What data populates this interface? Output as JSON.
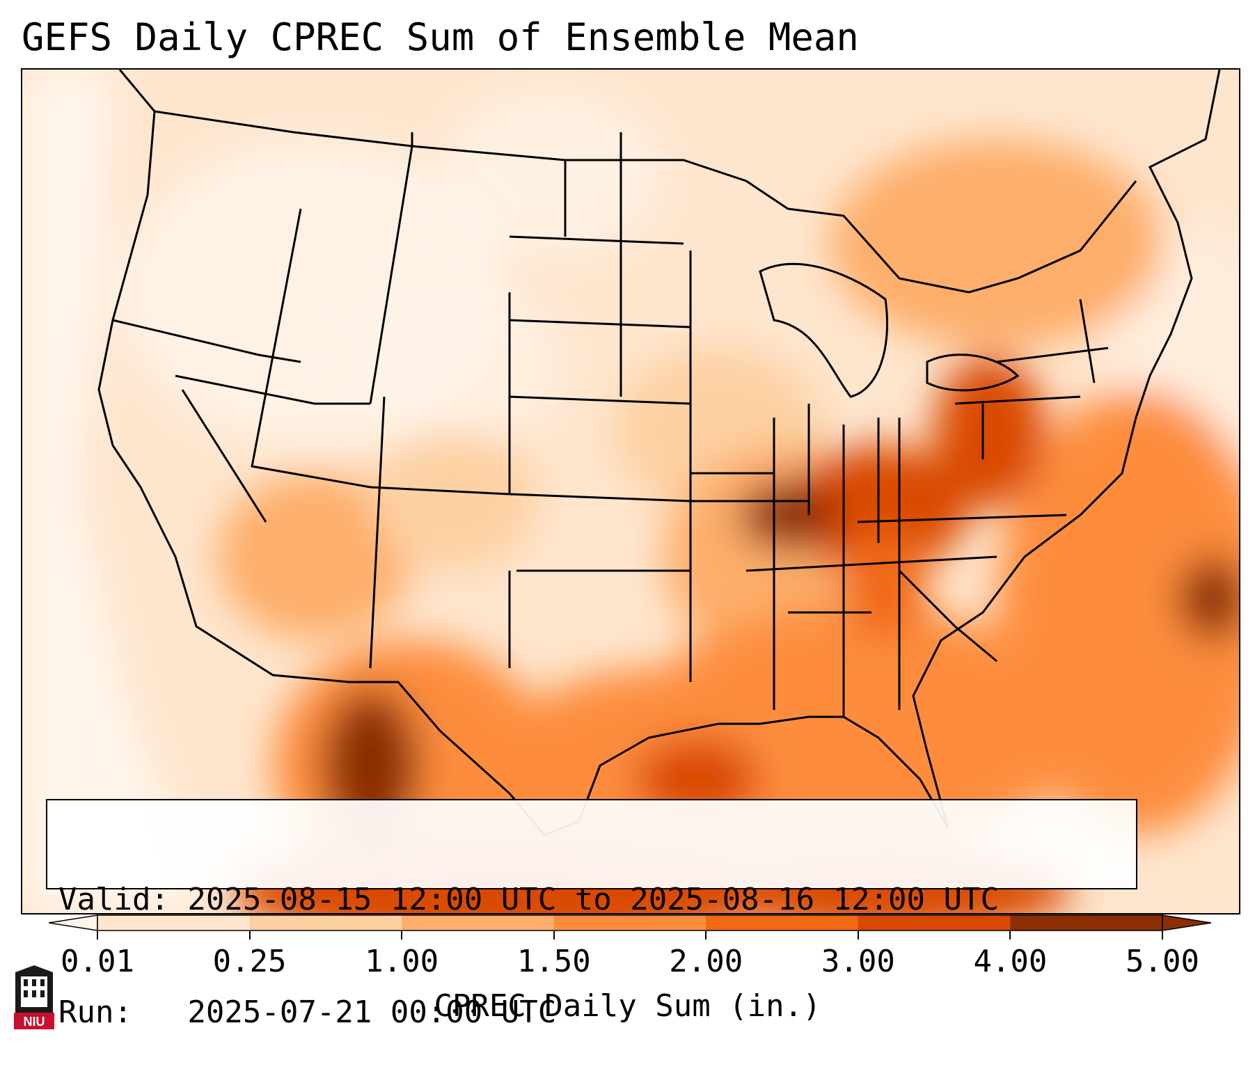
{
  "title": "GEFS Daily CPREC Sum of Ensemble Mean",
  "info_box": {
    "valid_line": "Valid: 2025-08-15 12:00 UTC to 2025-08-16 12:00 UTC",
    "run_line": "Run:   2025-07-21 00:00 UTC"
  },
  "colorbar": {
    "label": "CPREC Daily Sum (in.)",
    "ticks": [
      "0.01",
      "0.25",
      "1.00",
      "1.50",
      "2.00",
      "3.00",
      "4.00",
      "5.00"
    ],
    "colors": [
      "#fff5eb",
      "#fee6ce",
      "#fdd0a2",
      "#fdae6b",
      "#fd8d3c",
      "#f16913",
      "#d94801",
      "#8c2d04"
    ]
  },
  "logo": {
    "text": "NIU",
    "icon": "university-tower-icon",
    "color": "#c8102e"
  }
}
